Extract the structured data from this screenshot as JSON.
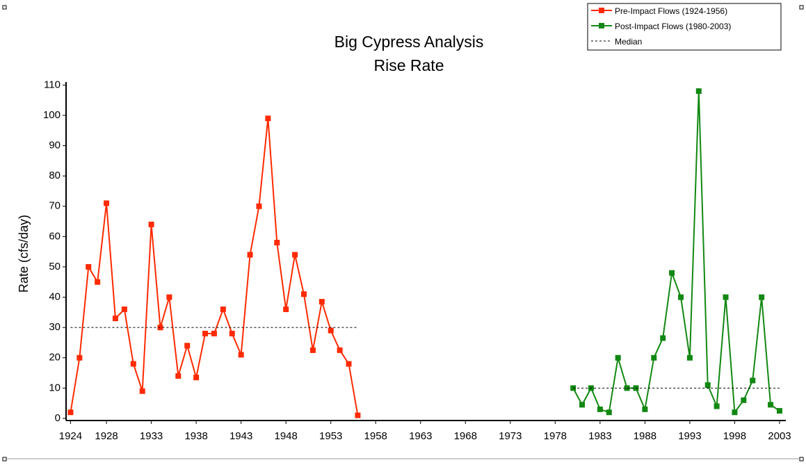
{
  "chart_data": {
    "type": "line",
    "title": "Big Cypress Analysis",
    "subtitle": "Rise Rate",
    "y_label": "Rate (cfs/day)",
    "xlim": [
      1923.5,
      2003.7
    ],
    "ylim": [
      -0.7,
      111
    ],
    "xticks": [
      1924,
      1928,
      1933,
      1938,
      1943,
      1948,
      1953,
      1958,
      1963,
      1968,
      1973,
      1978,
      1983,
      1988,
      1993,
      1998,
      2003
    ],
    "yticks": [
      0,
      10,
      20,
      30,
      40,
      50,
      60,
      70,
      80,
      90,
      100,
      110
    ],
    "legend": "top-right",
    "series": [
      {
        "name": "Pre-Impact Flows (1924-1956)",
        "color": "#ff2a00",
        "x": [
          1924,
          1925,
          1926,
          1927,
          1928,
          1929,
          1930,
          1931,
          1932,
          1933,
          1934,
          1935,
          1936,
          1937,
          1938,
          1939,
          1940,
          1941,
          1942,
          1943,
          1944,
          1945,
          1946,
          1947,
          1948,
          1949,
          1950,
          1951,
          1952,
          1953,
          1954,
          1955,
          1956
        ],
        "values": [
          2,
          20,
          50,
          45,
          71,
          33,
          36,
          18,
          9,
          64,
          30,
          40,
          14,
          24,
          13.5,
          28,
          28,
          36,
          28,
          21,
          54,
          70,
          99,
          58,
          36,
          54,
          41,
          22.5,
          38.5,
          29,
          22.5,
          18,
          1
        ]
      },
      {
        "name": "Post-Impact Flows (1980-2003)",
        "color": "#118811",
        "x": [
          1980,
          1981,
          1982,
          1983,
          1984,
          1985,
          1986,
          1987,
          1988,
          1989,
          1990,
          1991,
          1992,
          1993,
          1994,
          1995,
          1996,
          1997,
          1998,
          1999,
          2000,
          2001,
          2002,
          2003
        ],
        "values": [
          10,
          4.5,
          10,
          3,
          2,
          20,
          10,
          10,
          3,
          20,
          26.5,
          48,
          40,
          20,
          108,
          11,
          4,
          40,
          2,
          6,
          12.5,
          40,
          4.5,
          2.5
        ]
      }
    ],
    "median": {
      "name": "Median",
      "color": "#000000",
      "values": [
        30,
        10
      ]
    }
  }
}
